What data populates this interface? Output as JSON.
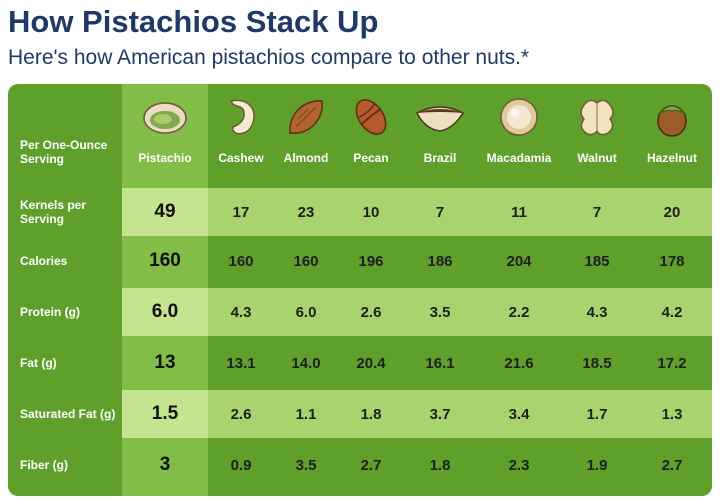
{
  "title": "How Pistachios Stack Up",
  "subtitle": "Here's how American pistachios compare to other nuts.*",
  "table": {
    "header_label": "Per One-Ounce Serving",
    "columns": [
      {
        "name": "Pistachio",
        "icon": "pistachio-icon"
      },
      {
        "name": "Cashew",
        "icon": "cashew-icon"
      },
      {
        "name": "Almond",
        "icon": "almond-icon"
      },
      {
        "name": "Pecan",
        "icon": "pecan-icon"
      },
      {
        "name": "Brazil",
        "icon": "brazil-nut-icon"
      },
      {
        "name": "Macadamia",
        "icon": "macadamia-icon"
      },
      {
        "name": "Walnut",
        "icon": "walnut-icon"
      },
      {
        "name": "Hazelnut",
        "icon": "hazelnut-icon"
      }
    ],
    "rows": [
      {
        "label": "Kernels per Serving",
        "values": [
          "49",
          "17",
          "23",
          "10",
          "7",
          "11",
          "7",
          "20"
        ]
      },
      {
        "label": "Calories",
        "values": [
          "160",
          "160",
          "160",
          "196",
          "186",
          "204",
          "185",
          "178"
        ]
      },
      {
        "label": "Protein (g)",
        "values": [
          "6.0",
          "4.3",
          "6.0",
          "2.6",
          "3.5",
          "2.2",
          "4.3",
          "4.2"
        ]
      },
      {
        "label": "Fat (g)",
        "values": [
          "13",
          "13.1",
          "14.0",
          "20.4",
          "16.1",
          "21.6",
          "18.5",
          "17.2"
        ]
      },
      {
        "label": "Saturated Fat (g)",
        "values": [
          "1.5",
          "2.6",
          "1.1",
          "1.8",
          "3.7",
          "3.4",
          "1.7",
          "1.3"
        ]
      },
      {
        "label": "Fiber (g)",
        "values": [
          "3",
          "0.9",
          "3.5",
          "2.7",
          "1.8",
          "2.3",
          "1.9",
          "2.7"
        ]
      }
    ]
  },
  "colors": {
    "title": "#1f3a68",
    "panel_green": "#5fa02b",
    "highlight_column": "#82bd48",
    "light_band": "#a9d36f",
    "highlight_band": "#c4e48f"
  }
}
